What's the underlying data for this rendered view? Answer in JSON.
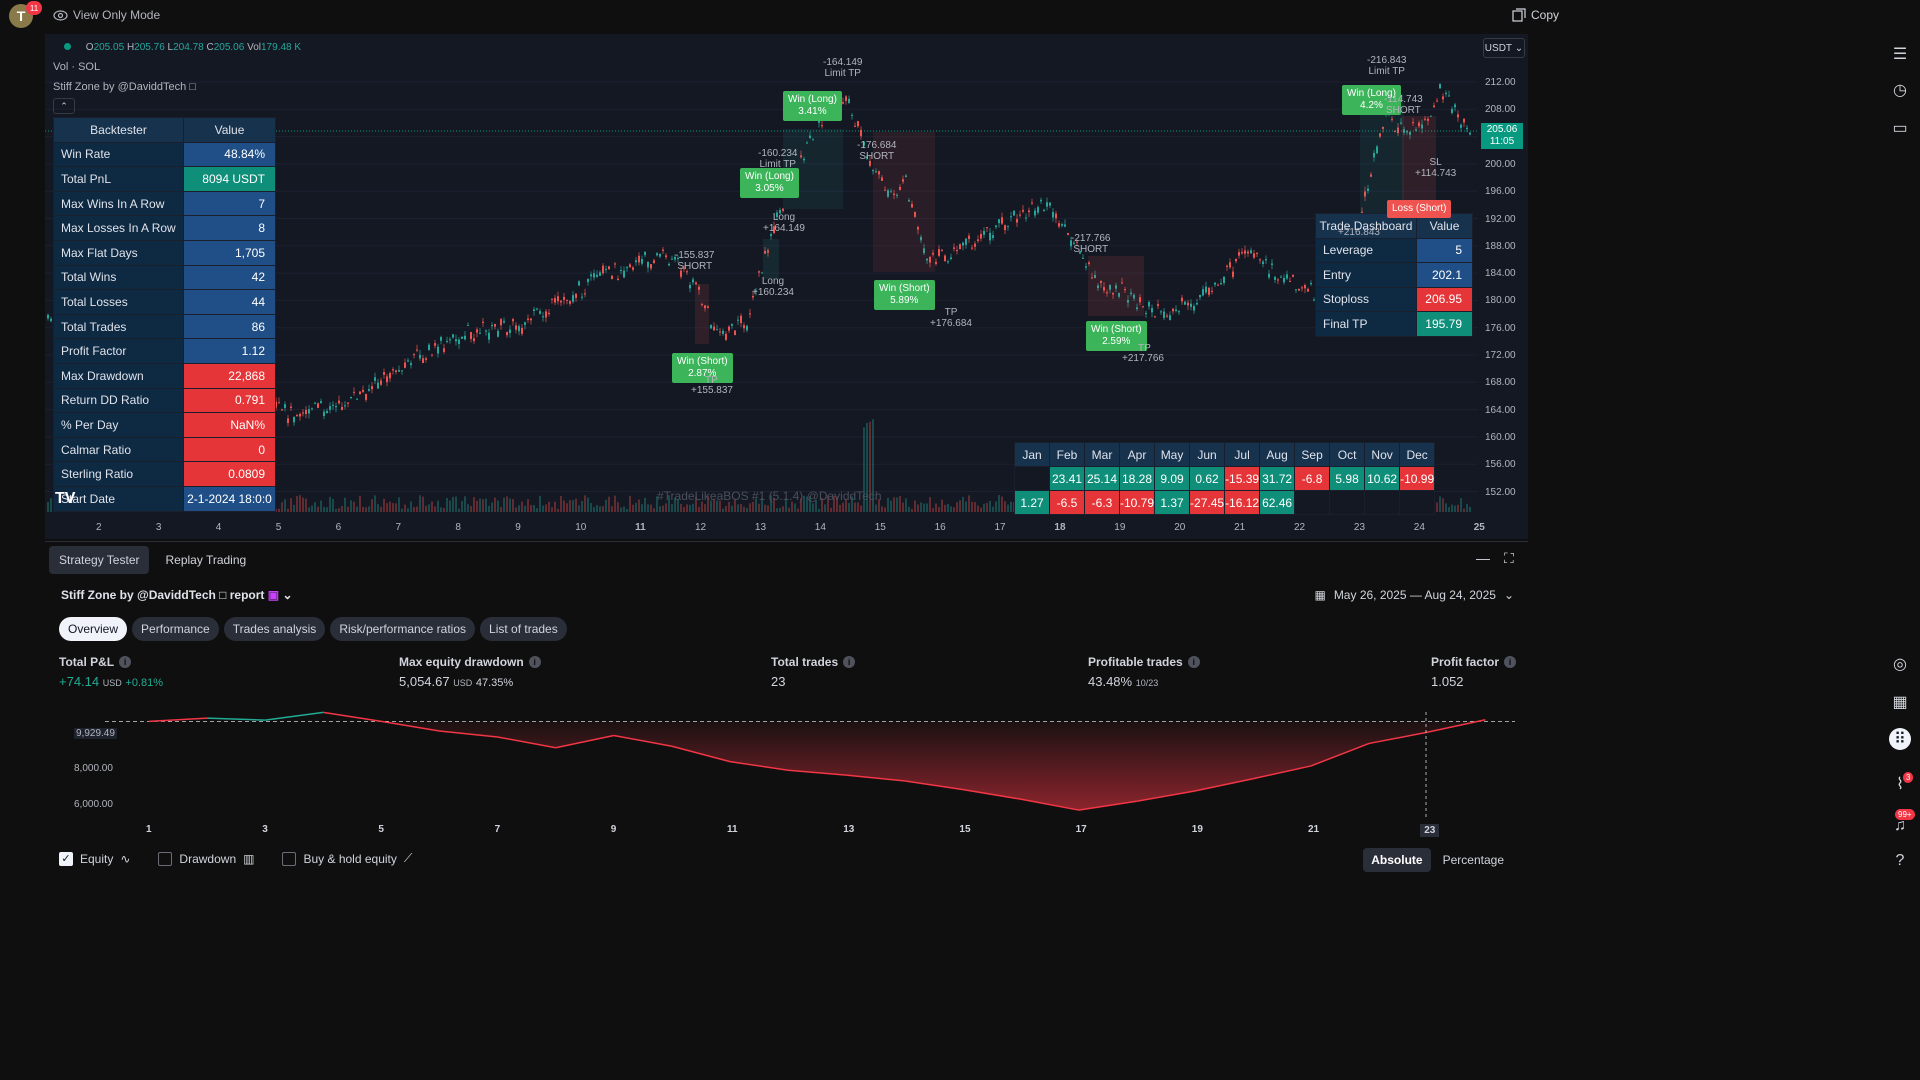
{
  "topbar": {
    "avatar_letter": "T",
    "avatar_badge": "11",
    "view_mode": "View Only Mode",
    "copy_label": "Copy"
  },
  "chart": {
    "ohlc": {
      "o_label": "O",
      "o": "205.05",
      "h_label": "H",
      "h": "205.76",
      "l_label": "L",
      "l": "204.78",
      "c_label": "C",
      "c": "205.06",
      "vol_label": "Vol",
      "vol": "179.48 K"
    },
    "vol_legend": "Vol · SOL",
    "indicator_legend": "Stiff Zone by @DaviddTech □",
    "currency": "USDT",
    "last_price": "205.06",
    "countdown": "11:05",
    "price_ticks": [
      "212.00",
      "208.00",
      "204.00",
      "200.00",
      "196.00",
      "192.00",
      "188.00",
      "184.00",
      "180.00",
      "176.00",
      "172.00",
      "168.00",
      "164.00",
      "160.00",
      "156.00",
      "152.00"
    ],
    "time_ticks": [
      "2",
      "3",
      "4",
      "5",
      "6",
      "7",
      "8",
      "9",
      "10",
      "11",
      "12",
      "13",
      "14",
      "15",
      "16",
      "17",
      "18",
      "19",
      "20",
      "21",
      "22",
      "23",
      "24",
      "25"
    ],
    "watermark": "#TradeLikeaBOS #1 (5.1.4) @DaviddTech"
  },
  "backtester": {
    "header_key": "Backtester",
    "header_val": "Value",
    "rows": [
      {
        "k": "Win Rate",
        "v": "48.84%"
      },
      {
        "k": "Total PnL",
        "v": "8094 USDT"
      },
      {
        "k": "Max Wins In A Row",
        "v": "7"
      },
      {
        "k": "Max Losses In A Row",
        "v": "8"
      },
      {
        "k": "Max Flat Days",
        "v": "1,705"
      },
      {
        "k": "Total Wins",
        "v": "42"
      },
      {
        "k": "Total Losses",
        "v": "44"
      },
      {
        "k": "Total Trades",
        "v": "86"
      },
      {
        "k": "Profit Factor",
        "v": "1.12"
      },
      {
        "k": "Max Drawdown",
        "v": "22,868"
      },
      {
        "k": "Return DD Ratio",
        "v": "0.791"
      },
      {
        "k": "% Per Day",
        "v": "NaN%"
      },
      {
        "k": "Calmar Ratio",
        "v": "0"
      },
      {
        "k": "Sterling Ratio",
        "v": "0.0809"
      },
      {
        "k": "Start Date",
        "v": "2-1-2024 18:0:0"
      }
    ]
  },
  "trade_dashboard": {
    "header_key": "Trade Dashboard",
    "header_val": "Value",
    "rows": [
      {
        "k": "Leverage",
        "v": "5"
      },
      {
        "k": "Entry",
        "v": "202.1"
      },
      {
        "k": "Stoploss",
        "v": "206.95"
      },
      {
        "k": "Final TP",
        "v": "195.79"
      }
    ]
  },
  "monthly": {
    "months": [
      "Jan",
      "Feb",
      "Mar",
      "Apr",
      "May",
      "Jun",
      "Jul",
      "Aug",
      "Sep",
      "Oct",
      "Nov",
      "Dec"
    ],
    "row1": [
      "",
      "23.41",
      "25.14",
      "18.28",
      "9.09",
      "0.62",
      "-15.39",
      "31.72",
      "-6.8",
      "5.98",
      "10.62",
      "-10.99"
    ],
    "row2": [
      "1.27",
      "-6.5",
      "-6.3",
      "-10.79",
      "1.37",
      "-27.45",
      "-16.12",
      "62.46",
      "",
      "",
      "",
      ""
    ]
  },
  "trades": {
    "t1": {
      "top": "-155.837",
      "top2": "SHORT",
      "tag1": "Win (Short)",
      "tag2": "2.87%",
      "tp": "TP",
      "bottom": "+155.837"
    },
    "t2": {
      "top": "-160.234",
      "top2": "Limit TP",
      "tag1": "Win (Long)",
      "tag2": "3.05%",
      "long": "Long",
      "bottom": "+160.234"
    },
    "t3": {
      "top": "-164.149",
      "top2": "Limit TP",
      "tag1": "Win (Long)",
      "tag2": "3.41%",
      "long": "Long",
      "bottom": "+164.149"
    },
    "t4": {
      "top": "-176.684",
      "top2": "SHORT",
      "tag1": "Win (Short)",
      "tag2": "5.89%",
      "tp": "TP",
      "bottom": "+176.684"
    },
    "t5": {
      "top": "-217.766",
      "top2": "SHORT",
      "tag1": "Win (Short)",
      "tag2": "2.59%",
      "tp": "TP",
      "bottom": "+217.766"
    },
    "t6": {
      "top": "-216.843",
      "top2": "Limit TP",
      "tag1": "Win (Long)",
      "tag2": "4.2%",
      "mid": "-114.743",
      "mid2": "SHORT",
      "sl": "SL",
      "sl2": "+114.743",
      "loss": "Loss (Short)",
      "lower": "+216.843"
    }
  },
  "panel": {
    "tabs": [
      "Strategy Tester",
      "Replay Trading"
    ],
    "report_title": "Stiff Zone by @DaviddTech □ report",
    "date_range": "May 26, 2025 — Aug 24, 2025",
    "subtabs": [
      "Overview",
      "Performance",
      "Trades analysis",
      "Risk/performance ratios",
      "List of trades"
    ],
    "metrics": {
      "pnl_label": "Total P&L",
      "pnl_value": "+74.14",
      "pnl_unit": "USD",
      "pnl_pct": "+0.81%",
      "dd_label": "Max equity drawdown",
      "dd_value": "5,054.67",
      "dd_unit": "USD",
      "dd_pct": "47.35%",
      "trades_label": "Total trades",
      "trades_value": "23",
      "prof_label": "Profitable trades",
      "prof_value": "43.48%",
      "prof_sub": "10/23",
      "pf_label": "Profit factor",
      "pf_value": "1.052"
    },
    "equity_yticks": [
      "9,929.49",
      "8,000.00",
      "6,000.00"
    ],
    "equity_xticks": [
      "1",
      "3",
      "5",
      "7",
      "9",
      "11",
      "13",
      "15",
      "17",
      "19",
      "21",
      "23"
    ],
    "legend": {
      "equity": "Equity",
      "drawdown": "Drawdown",
      "buyhold": "Buy & hold equity"
    },
    "toggle": {
      "absolute": "Absolute",
      "percentage": "Percentage"
    }
  },
  "equity_data": {
    "x": [
      1,
      2,
      3,
      4,
      5,
      6,
      7,
      8,
      9,
      10,
      11,
      12,
      13,
      14,
      15,
      16,
      17,
      18,
      19,
      20,
      21,
      22,
      23,
      24
    ],
    "y": [
      9929,
      10080,
      9990,
      10350,
      9929,
      9480,
      9200,
      8700,
      9270,
      8770,
      8050,
      7650,
      7420,
      7150,
      6750,
      6300,
      5790,
      6200,
      6680,
      7250,
      7850,
      8900,
      9420,
      10003
    ],
    "baseline": 9929.49,
    "colors": {
      "up": "#22ab94",
      "down": "#f23645"
    }
  },
  "right_badges": {
    "alerts": "3",
    "notifications": "99+"
  }
}
